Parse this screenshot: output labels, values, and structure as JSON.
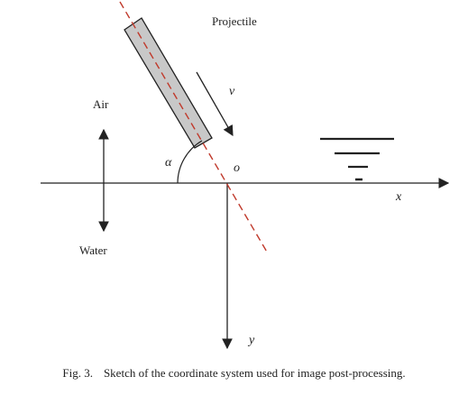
{
  "labels": {
    "projectile": "Projectile",
    "velocity": "v",
    "air": "Air",
    "water": "Water",
    "angle": "α",
    "origin": "o",
    "x_axis": "x",
    "y_axis": "y"
  },
  "caption": {
    "figure_number": "Fig. 3.",
    "text": "Sketch of the coordinate system used for image post-processing."
  },
  "colors": {
    "trajectory_line": "#c0392b",
    "projectile_fill": "#c8c8c8",
    "ink": "#222222"
  },
  "icons": [
    "water-surface-symbol"
  ]
}
